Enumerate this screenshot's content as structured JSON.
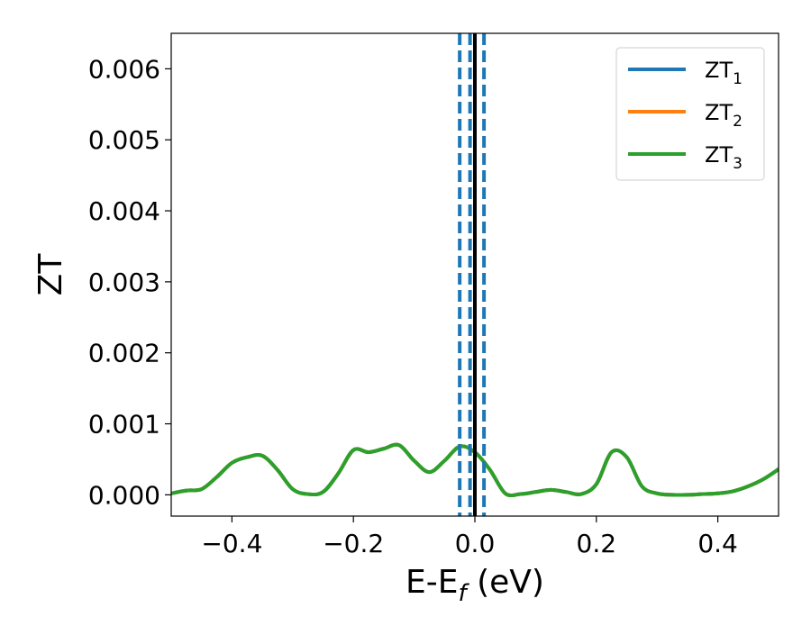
{
  "chart_data": {
    "type": "line",
    "xlabel": "E-E",
    "xlabel_subscript": "f",
    "xlabel_suffix": " (eV)",
    "ylabel": "ZT",
    "xlim": [
      -0.5,
      0.5
    ],
    "ylim": [
      -0.0003,
      0.0065
    ],
    "x_ticks": [
      -0.4,
      -0.2,
      0.0,
      0.2,
      0.4
    ],
    "x_tick_labels": [
      "−0.4",
      "−0.2",
      "0.0",
      "0.2",
      "0.4"
    ],
    "y_ticks": [
      0.0,
      0.001,
      0.002,
      0.003,
      0.004,
      0.005,
      0.006
    ],
    "y_tick_labels": [
      "0.000",
      "0.001",
      "0.002",
      "0.003",
      "0.004",
      "0.005",
      "0.006"
    ],
    "grid": false,
    "legend_position": "top-right",
    "legend": [
      {
        "base": "ZT",
        "sub": "1",
        "color": "#1f77b4"
      },
      {
        "base": "ZT",
        "sub": "2",
        "color": "#ff7f0e"
      },
      {
        "base": "ZT",
        "sub": "3",
        "color": "#2ca02c"
      }
    ],
    "vlines": [
      {
        "x": 0.0,
        "style": "solid",
        "color": "#000000"
      },
      {
        "x": -0.025,
        "style": "dashed",
        "color": "#1f77b4"
      },
      {
        "x": -0.008,
        "style": "dashed",
        "color": "#1f77b4"
      },
      {
        "x": 0.015,
        "style": "dashed",
        "color": "#1f77b4"
      }
    ],
    "x": [
      -0.5,
      -0.475,
      -0.45,
      -0.425,
      -0.4,
      -0.375,
      -0.35,
      -0.325,
      -0.3,
      -0.275,
      -0.25,
      -0.225,
      -0.2,
      -0.175,
      -0.15,
      -0.125,
      -0.1,
      -0.075,
      -0.05,
      -0.025,
      0.0,
      0.025,
      0.05,
      0.075,
      0.1,
      0.125,
      0.15,
      0.175,
      0.2,
      0.225,
      0.25,
      0.275,
      0.3,
      0.325,
      0.35,
      0.375,
      0.4,
      0.425,
      0.45,
      0.475,
      0.5
    ],
    "series": [
      {
        "name": "ZT1",
        "color": "#1f77b4",
        "values": [
          2e-05,
          6e-05,
          8e-05,
          0.00025,
          0.00045,
          0.00053,
          0.00055,
          0.00035,
          8e-05,
          1e-05,
          4e-05,
          0.0003,
          0.00063,
          0.0006,
          0.00065,
          0.0007,
          0.00048,
          0.00032,
          0.00048,
          0.00068,
          0.0006,
          0.00035,
          2e-05,
          1e-05,
          4e-05,
          7e-05,
          4e-05,
          1e-05,
          0.00015,
          0.0006,
          0.00053,
          0.00012,
          2e-05,
          0.0,
          0.0,
          1e-05,
          2e-05,
          5e-05,
          0.00012,
          0.00022,
          0.00036
        ]
      },
      {
        "name": "ZT2",
        "color": "#ff7f0e",
        "values": [
          2e-05,
          6e-05,
          8e-05,
          0.00025,
          0.00045,
          0.00053,
          0.00055,
          0.00035,
          8e-05,
          1e-05,
          4e-05,
          0.0003,
          0.00063,
          0.0006,
          0.00065,
          0.0007,
          0.00048,
          0.00032,
          0.00048,
          0.00068,
          0.0006,
          0.00035,
          2e-05,
          1e-05,
          4e-05,
          7e-05,
          4e-05,
          1e-05,
          0.00015,
          0.0006,
          0.00053,
          0.00012,
          2e-05,
          0.0,
          0.0,
          1e-05,
          2e-05,
          5e-05,
          0.00012,
          0.00022,
          0.00036
        ]
      },
      {
        "name": "ZT3",
        "color": "#2ca02c",
        "values": [
          2e-05,
          6e-05,
          8e-05,
          0.00025,
          0.00045,
          0.00053,
          0.00055,
          0.00035,
          8e-05,
          1e-05,
          4e-05,
          0.0003,
          0.00063,
          0.0006,
          0.00065,
          0.0007,
          0.00048,
          0.00032,
          0.00048,
          0.00068,
          0.0006,
          0.00035,
          2e-05,
          1e-05,
          4e-05,
          7e-05,
          4e-05,
          1e-05,
          0.00015,
          0.0006,
          0.00053,
          0.00012,
          2e-05,
          0.0,
          0.0,
          1e-05,
          2e-05,
          5e-05,
          0.00012,
          0.00022,
          0.00036
        ]
      }
    ]
  }
}
